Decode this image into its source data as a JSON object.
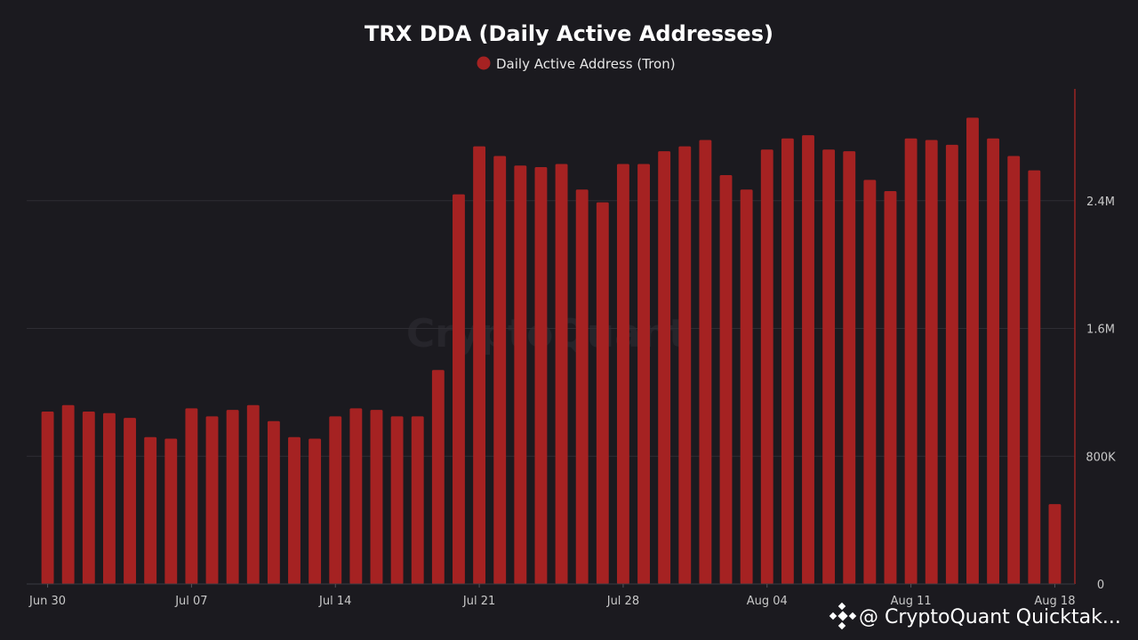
{
  "chart_data": {
    "type": "bar",
    "title": "TRX DDA (Daily Active Addresses)",
    "legend": {
      "position": "top-center",
      "entries": [
        "Daily Active Address (Tron)"
      ]
    },
    "series": [
      {
        "name": "Daily Active Address (Tron)",
        "color": "#a52222",
        "values": [
          1080000,
          1120000,
          1080000,
          1070000,
          1040000,
          920000,
          910000,
          1100000,
          1050000,
          1090000,
          1120000,
          1020000,
          920000,
          910000,
          1050000,
          1100000,
          1090000,
          1050000,
          1050000,
          1340000,
          2440000,
          2740000,
          2680000,
          2620000,
          2610000,
          2630000,
          2470000,
          2390000,
          2630000,
          2630000,
          2710000,
          2740000,
          2780000,
          2560000,
          2470000,
          2720000,
          2790000,
          2810000,
          2720000,
          2710000,
          2530000,
          2460000,
          2790000,
          2780000,
          2750000,
          2920000,
          2790000,
          2680000,
          2590000,
          500000
        ]
      }
    ],
    "x_start": "Jun 30",
    "x_ticks": [
      "Jun 30",
      "Jul 07",
      "Jul 14",
      "Jul 21",
      "Jul 28",
      "Aug 04",
      "Aug 11",
      "Aug 18"
    ],
    "y_axis": {
      "position": "right",
      "min": 0,
      "max": 3100000,
      "ticks": [
        0,
        800000,
        1600000,
        2400000
      ],
      "tick_labels": [
        "0",
        "800K",
        "1.6M",
        "2.4M"
      ]
    },
    "grid": true
  },
  "watermark": "CryptoQuant",
  "credit": "@ CryptoQuant Quicktak..."
}
